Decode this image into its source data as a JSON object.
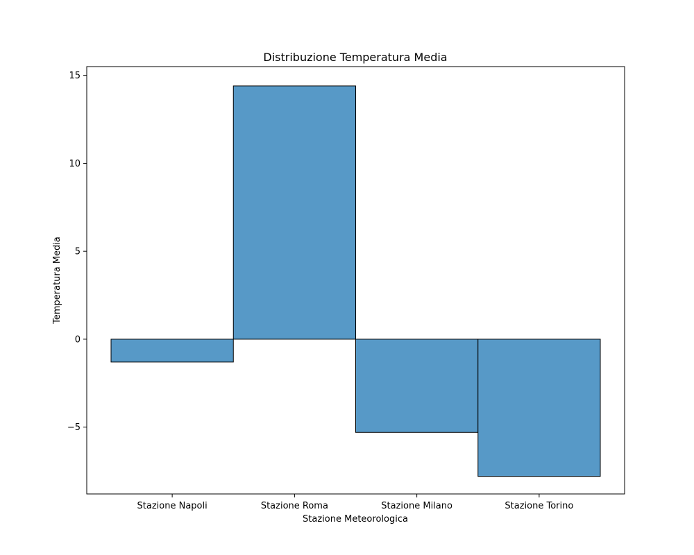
{
  "chart_data": {
    "type": "bar",
    "title": "Distribuzione Temperatura Media",
    "xlabel": "Stazione Meteorologica",
    "ylabel": "Temperatura Media",
    "categories": [
      "Stazione Napoli",
      "Stazione Roma",
      "Stazione Milano",
      "Stazione Torino"
    ],
    "values": [
      -1.3,
      14.4,
      -5.3,
      -7.8
    ],
    "ylim": [
      -8.8,
      15.5
    ],
    "yticks": [
      -5,
      0,
      5,
      10,
      15
    ],
    "ytick_labels": [
      "−5",
      "0",
      "5",
      "10",
      "15"
    ],
    "bar_color": "#5799c7",
    "edge_color": "#000000",
    "grid": false,
    "legend": false
  }
}
